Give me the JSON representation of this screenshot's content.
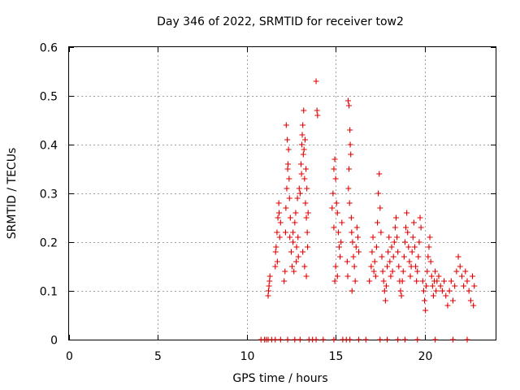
{
  "chart_data": {
    "type": "scatter",
    "title": "Day 346 of 2022, SRMTID for receiver tow2",
    "xlabel": "GPS time / hours",
    "ylabel": "SRMTID / TECUs",
    "xlim": [
      0,
      24
    ],
    "ylim": [
      0,
      0.6
    ],
    "xticks": [
      0,
      5,
      10,
      15,
      20
    ],
    "xtick_labels": [
      "0",
      "5",
      "10",
      "15",
      "20"
    ],
    "yticks": [
      0,
      0.1,
      0.2,
      0.3,
      0.4,
      0.5,
      0.6
    ],
    "ytick_labels": [
      "0",
      "0.1",
      "0.2",
      "0.3",
      "0.4",
      "0.5",
      "0.6"
    ],
    "grid": true,
    "marker": "+",
    "color": "#e00000",
    "series": [
      {
        "name": "SRMTID",
        "points": [
          [
            10.8,
            0.0
          ],
          [
            11.0,
            0.0
          ],
          [
            11.1,
            0.0
          ],
          [
            11.2,
            0.0
          ],
          [
            11.4,
            0.0
          ],
          [
            11.6,
            0.0
          ],
          [
            11.9,
            0.0
          ],
          [
            12.3,
            0.0
          ],
          [
            12.7,
            0.0
          ],
          [
            13.0,
            0.0
          ],
          [
            13.5,
            0.0
          ],
          [
            13.7,
            0.0
          ],
          [
            13.9,
            0.0
          ],
          [
            14.3,
            0.0
          ],
          [
            14.9,
            0.0
          ],
          [
            15.4,
            0.0
          ],
          [
            15.6,
            0.0
          ],
          [
            15.8,
            0.0
          ],
          [
            16.3,
            0.0
          ],
          [
            16.7,
            0.0
          ],
          [
            17.5,
            0.0
          ],
          [
            17.9,
            0.0
          ],
          [
            18.5,
            0.0
          ],
          [
            18.9,
            0.0
          ],
          [
            19.6,
            0.0
          ],
          [
            20.6,
            0.0
          ],
          [
            21.6,
            0.0
          ],
          [
            22.4,
            0.0
          ],
          [
            11.2,
            0.09
          ],
          [
            11.25,
            0.11
          ],
          [
            11.3,
            0.13
          ],
          [
            11.22,
            0.1
          ],
          [
            11.28,
            0.12
          ],
          [
            11.6,
            0.15
          ],
          [
            11.65,
            0.19
          ],
          [
            11.7,
            0.22
          ],
          [
            11.75,
            0.25
          ],
          [
            11.8,
            0.28
          ],
          [
            11.85,
            0.21
          ],
          [
            11.9,
            0.24
          ],
          [
            11.62,
            0.18
          ],
          [
            11.72,
            0.16
          ],
          [
            11.82,
            0.26
          ],
          [
            12.1,
            0.12
          ],
          [
            12.15,
            0.14
          ],
          [
            12.2,
            0.27
          ],
          [
            12.25,
            0.31
          ],
          [
            12.3,
            0.35
          ],
          [
            12.35,
            0.39
          ],
          [
            12.22,
            0.44
          ],
          [
            12.28,
            0.41
          ],
          [
            12.32,
            0.36
          ],
          [
            12.4,
            0.29
          ],
          [
            12.45,
            0.25
          ],
          [
            12.5,
            0.18
          ],
          [
            12.55,
            0.15
          ],
          [
            12.6,
            0.2
          ],
          [
            12.38,
            0.33
          ],
          [
            12.18,
            0.22
          ],
          [
            12.42,
            0.21
          ],
          [
            12.6,
            0.22
          ],
          [
            12.7,
            0.24
          ],
          [
            12.8,
            0.19
          ],
          [
            12.9,
            0.17
          ],
          [
            12.75,
            0.26
          ],
          [
            12.85,
            0.29
          ],
          [
            12.95,
            0.31
          ],
          [
            12.65,
            0.14
          ],
          [
            12.88,
            0.21
          ],
          [
            12.78,
            0.16
          ],
          [
            13.0,
            0.3
          ],
          [
            13.05,
            0.36
          ],
          [
            13.1,
            0.4
          ],
          [
            13.15,
            0.44
          ],
          [
            13.2,
            0.47
          ],
          [
            13.12,
            0.42
          ],
          [
            13.18,
            0.38
          ],
          [
            13.25,
            0.33
          ],
          [
            13.3,
            0.28
          ],
          [
            13.35,
            0.25
          ],
          [
            13.4,
            0.22
          ],
          [
            13.08,
            0.34
          ],
          [
            13.22,
            0.39
          ],
          [
            13.28,
            0.41
          ],
          [
            13.33,
            0.35
          ],
          [
            13.38,
            0.31
          ],
          [
            13.45,
            0.26
          ],
          [
            13.42,
            0.19
          ],
          [
            13.15,
            0.18
          ],
          [
            13.25,
            0.15
          ],
          [
            13.35,
            0.13
          ],
          [
            13.9,
            0.53
          ],
          [
            13.95,
            0.47
          ],
          [
            13.98,
            0.46
          ],
          [
            14.8,
            0.27
          ],
          [
            14.85,
            0.3
          ],
          [
            14.9,
            0.35
          ],
          [
            14.95,
            0.37
          ],
          [
            15.0,
            0.33
          ],
          [
            15.05,
            0.28
          ],
          [
            15.1,
            0.26
          ],
          [
            15.15,
            0.22
          ],
          [
            15.2,
            0.19
          ],
          [
            15.25,
            0.17
          ],
          [
            15.0,
            0.15
          ],
          [
            15.1,
            0.13
          ],
          [
            14.9,
            0.23
          ],
          [
            14.95,
            0.12
          ],
          [
            15.3,
            0.2
          ],
          [
            15.35,
            0.24
          ],
          [
            15.7,
            0.49
          ],
          [
            15.75,
            0.48
          ],
          [
            15.8,
            0.43
          ],
          [
            15.82,
            0.4
          ],
          [
            15.85,
            0.38
          ],
          [
            15.75,
            0.35
          ],
          [
            15.72,
            0.31
          ],
          [
            15.78,
            0.28
          ],
          [
            15.88,
            0.25
          ],
          [
            15.9,
            0.22
          ],
          [
            15.95,
            0.2
          ],
          [
            16.0,
            0.17
          ],
          [
            16.05,
            0.15
          ],
          [
            16.1,
            0.12
          ],
          [
            15.65,
            0.16
          ],
          [
            15.68,
            0.13
          ],
          [
            15.92,
            0.1
          ],
          [
            16.15,
            0.19
          ],
          [
            16.2,
            0.23
          ],
          [
            16.25,
            0.21
          ],
          [
            16.3,
            0.18
          ],
          [
            16.9,
            0.12
          ],
          [
            17.0,
            0.15
          ],
          [
            17.05,
            0.18
          ],
          [
            17.1,
            0.21
          ],
          [
            17.15,
            0.14
          ],
          [
            17.2,
            0.16
          ],
          [
            17.25,
            0.13
          ],
          [
            17.3,
            0.19
          ],
          [
            17.35,
            0.24
          ],
          [
            17.4,
            0.3
          ],
          [
            17.45,
            0.34
          ],
          [
            17.5,
            0.27
          ],
          [
            17.55,
            0.22
          ],
          [
            17.6,
            0.17
          ],
          [
            17.65,
            0.14
          ],
          [
            17.7,
            0.12
          ],
          [
            17.75,
            0.1
          ],
          [
            17.8,
            0.08
          ],
          [
            17.85,
            0.11
          ],
          [
            17.9,
            0.15
          ],
          [
            17.95,
            0.18
          ],
          [
            18.0,
            0.21
          ],
          [
            18.05,
            0.16
          ],
          [
            18.1,
            0.13
          ],
          [
            18.15,
            0.19
          ],
          [
            18.2,
            0.14
          ],
          [
            18.25,
            0.17
          ],
          [
            18.3,
            0.2
          ],
          [
            18.35,
            0.23
          ],
          [
            18.4,
            0.25
          ],
          [
            18.45,
            0.21
          ],
          [
            18.5,
            0.18
          ],
          [
            18.55,
            0.15
          ],
          [
            18.6,
            0.12
          ],
          [
            18.65,
            0.1
          ],
          [
            18.7,
            0.09
          ],
          [
            18.75,
            0.12
          ],
          [
            18.8,
            0.14
          ],
          [
            18.85,
            0.17
          ],
          [
            18.9,
            0.2
          ],
          [
            18.95,
            0.23
          ],
          [
            19.0,
            0.26
          ],
          [
            19.05,
            0.22
          ],
          [
            19.1,
            0.19
          ],
          [
            19.15,
            0.16
          ],
          [
            19.2,
            0.13
          ],
          [
            19.25,
            0.15
          ],
          [
            19.3,
            0.18
          ],
          [
            19.35,
            0.21
          ],
          [
            19.4,
            0.24
          ],
          [
            19.45,
            0.19
          ],
          [
            19.5,
            0.15
          ],
          [
            19.55,
            0.12
          ],
          [
            19.6,
            0.14
          ],
          [
            19.65,
            0.17
          ],
          [
            19.7,
            0.2
          ],
          [
            19.75,
            0.25
          ],
          [
            19.8,
            0.23
          ],
          [
            19.9,
            0.12
          ],
          [
            19.95,
            0.1
          ],
          [
            20.0,
            0.08
          ],
          [
            20.05,
            0.06
          ],
          [
            20.1,
            0.11
          ],
          [
            20.15,
            0.14
          ],
          [
            20.2,
            0.17
          ],
          [
            20.25,
            0.19
          ],
          [
            20.3,
            0.21
          ],
          [
            20.35,
            0.16
          ],
          [
            20.4,
            0.13
          ],
          [
            20.45,
            0.11
          ],
          [
            20.5,
            0.09
          ],
          [
            20.55,
            0.12
          ],
          [
            20.6,
            0.14
          ],
          [
            20.65,
            0.1
          ],
          [
            20.7,
            0.12
          ],
          [
            20.8,
            0.13
          ],
          [
            20.9,
            0.11
          ],
          [
            21.0,
            0.1
          ],
          [
            21.1,
            0.12
          ],
          [
            21.2,
            0.09
          ],
          [
            21.3,
            0.07
          ],
          [
            21.4,
            0.1
          ],
          [
            21.5,
            0.12
          ],
          [
            21.6,
            0.08
          ],
          [
            21.7,
            0.11
          ],
          [
            21.8,
            0.14
          ],
          [
            21.9,
            0.17
          ],
          [
            22.0,
            0.15
          ],
          [
            22.1,
            0.13
          ],
          [
            22.2,
            0.11
          ],
          [
            22.3,
            0.14
          ],
          [
            22.4,
            0.12
          ],
          [
            22.5,
            0.1
          ],
          [
            22.6,
            0.08
          ],
          [
            22.7,
            0.13
          ],
          [
            22.75,
            0.07
          ],
          [
            22.8,
            0.11
          ]
        ]
      }
    ]
  }
}
